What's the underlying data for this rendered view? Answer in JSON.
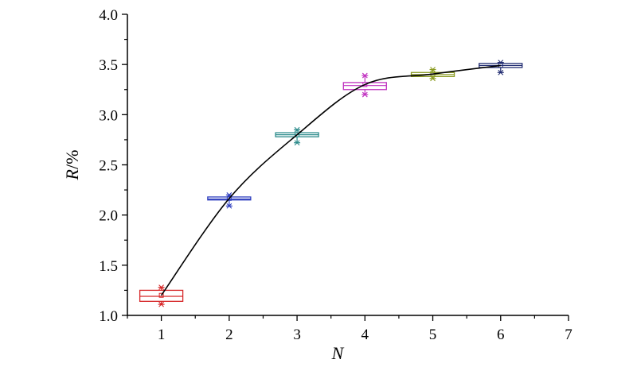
{
  "chart_data": {
    "type": "box",
    "xlabel": "N",
    "ylabel_italic": "R",
    "ylabel_unit": "/%",
    "xlim": [
      0.5,
      7
    ],
    "ylim": [
      1.0,
      4.0
    ],
    "x_ticks": [
      1,
      2,
      3,
      4,
      5,
      6,
      7
    ],
    "x_tick_labels": [
      "1",
      "2",
      "3",
      "4",
      "5",
      "6",
      "7"
    ],
    "y_ticks": [
      1.0,
      1.5,
      2.0,
      2.5,
      3.0,
      3.5,
      4.0
    ],
    "y_tick_labels": [
      "1.0",
      "1.5",
      "2.0",
      "2.5",
      "3.0",
      "3.5",
      "4.0"
    ],
    "boxes": [
      {
        "x": 1,
        "q1": 1.14,
        "median": 1.19,
        "mean": 1.2,
        "q3": 1.25,
        "whisker_low": 1.11,
        "whisker_high": 1.28,
        "color": "#d62728"
      },
      {
        "x": 2,
        "q1": 2.15,
        "median": 2.16,
        "mean": 2.165,
        "q3": 2.18,
        "whisker_low": 2.09,
        "whisker_high": 2.2,
        "color": "#2f3fbf"
      },
      {
        "x": 3,
        "q1": 2.78,
        "median": 2.8,
        "mean": 2.8,
        "q3": 2.82,
        "whisker_low": 2.72,
        "whisker_high": 2.85,
        "color": "#2a8a8a"
      },
      {
        "x": 4,
        "q1": 3.25,
        "median": 3.29,
        "mean": 3.3,
        "q3": 3.32,
        "whisker_low": 3.2,
        "whisker_high": 3.39,
        "color": "#c030c0"
      },
      {
        "x": 5,
        "q1": 3.38,
        "median": 3.4,
        "mean": 3.405,
        "q3": 3.42,
        "whisker_low": 3.36,
        "whisker_high": 3.45,
        "color": "#8a9a20"
      },
      {
        "x": 6,
        "q1": 3.47,
        "median": 3.49,
        "mean": 3.49,
        "q3": 3.51,
        "whisker_low": 3.42,
        "whisker_high": 3.52,
        "color": "#1f2a70"
      }
    ],
    "mean_line": {
      "x": [
        1,
        2,
        3,
        4,
        5,
        6
      ],
      "y": [
        1.2,
        2.165,
        2.8,
        3.3,
        3.405,
        3.49
      ],
      "color": "#000000",
      "smooth": true
    },
    "grid": false,
    "legend": "none"
  }
}
